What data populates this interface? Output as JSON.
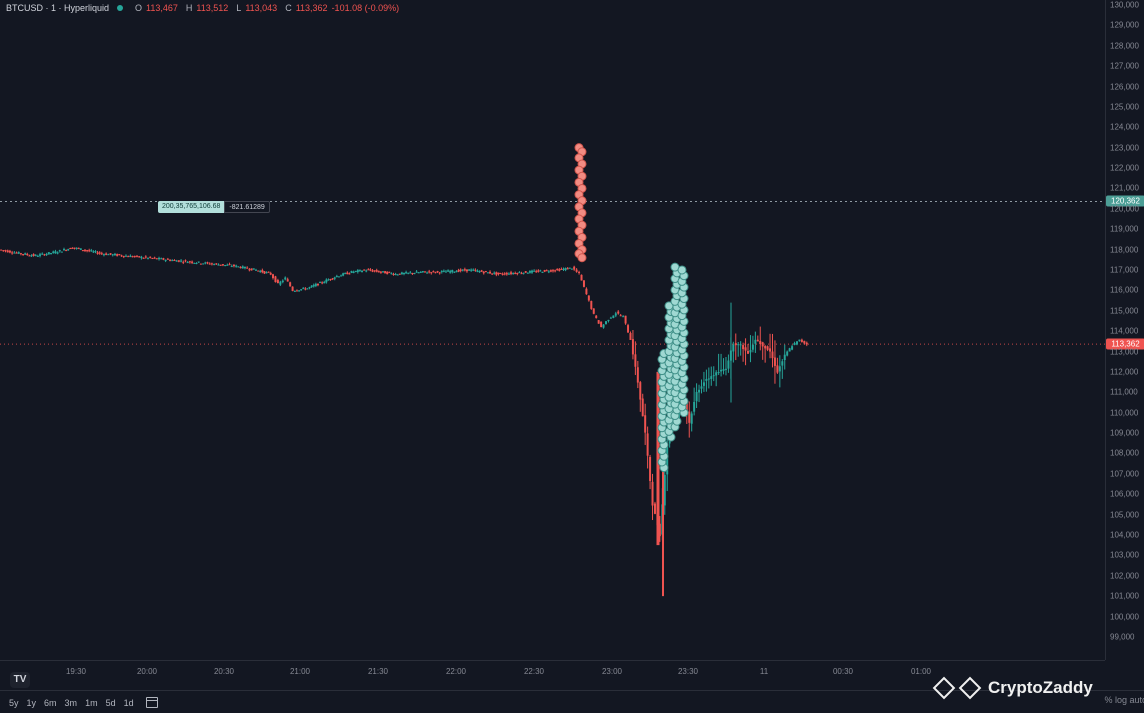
{
  "header": {
    "symbol": "BTCUSD · 1 · Hyperliquid",
    "o_key": "O",
    "o_val": "113,467",
    "h_key": "H",
    "h_val": "113,512",
    "l_key": "L",
    "l_val": "113,043",
    "c_key": "C",
    "c_val": "113,362",
    "change": "-101.08 (-0.09%)"
  },
  "colors": {
    "background": "#131722",
    "up": "#26a69a",
    "down": "#ef5350",
    "bubble_buy": "#9fd8d2",
    "bubble_sell": "#f28b82",
    "grid": "#1e222d"
  },
  "line_label": {
    "left_text": "200,35,765,106.68",
    "right_text": "-821.61289"
  },
  "price_badges": {
    "upper": "120,362",
    "current": "113,362"
  },
  "chart_data": {
    "type": "candlestick",
    "y_ticks": [
      "130,000",
      "129,000",
      "128,000",
      "127,000",
      "126,000",
      "125,000",
      "124,000",
      "123,000",
      "122,000",
      "121,000",
      "120,000",
      "119,000",
      "118,000",
      "117,000",
      "116,000",
      "115,000",
      "114,000",
      "113,000",
      "112,000",
      "111,000",
      "110,000",
      "109,000",
      "108,000",
      "107,000",
      "106,000",
      "105,000",
      "104,000",
      "103,000",
      "102,000",
      "101,000",
      "100,000",
      "99,000"
    ],
    "ylim": [
      98700,
      130000
    ],
    "x_ticks": [
      "19:30",
      "20:00",
      "20:30",
      "21:00",
      "21:30",
      "22:00",
      "22:30",
      "23:00",
      "23:30",
      "11",
      "00:30",
      "01:00"
    ],
    "price_path": [
      [
        0,
        118000
      ],
      [
        3,
        117800
      ],
      [
        5,
        117700
      ],
      [
        8,
        117900
      ],
      [
        10,
        118100
      ],
      [
        12,
        117950
      ],
      [
        14,
        117800
      ],
      [
        17,
        117700
      ],
      [
        20,
        117600
      ],
      [
        23,
        117500
      ],
      [
        26,
        117400
      ],
      [
        29,
        117300
      ],
      [
        32,
        117200
      ],
      [
        35,
        117000
      ],
      [
        37,
        116800
      ],
      [
        38,
        116300
      ],
      [
        39,
        116600
      ],
      [
        40,
        116000
      ],
      [
        42,
        116100
      ],
      [
        44,
        116400
      ],
      [
        46,
        116700
      ],
      [
        48,
        116900
      ],
      [
        50,
        117000
      ],
      [
        52,
        116900
      ],
      [
        54,
        116800
      ],
      [
        56,
        116850
      ],
      [
        58,
        116900
      ],
      [
        60,
        116900
      ],
      [
        62,
        116950
      ],
      [
        64,
        117000
      ],
      [
        66,
        116900
      ],
      [
        68,
        116800
      ],
      [
        70,
        116850
      ],
      [
        72,
        116900
      ],
      [
        74,
        116950
      ],
      [
        76,
        117000
      ],
      [
        78,
        117100
      ],
      [
        79,
        116800
      ],
      [
        80,
        115800
      ],
      [
        81,
        114800
      ],
      [
        82,
        114200
      ],
      [
        83,
        114600
      ],
      [
        84,
        114900
      ],
      [
        85,
        114700
      ],
      [
        86,
        113600
      ],
      [
        87,
        111500
      ],
      [
        88,
        109000
      ],
      [
        89,
        105500
      ],
      [
        90,
        104000
      ],
      [
        91,
        108500
      ],
      [
        92,
        110200
      ],
      [
        93,
        111200
      ],
      [
        94,
        109500
      ],
      [
        95,
        111000
      ],
      [
        96,
        111500
      ],
      [
        97,
        111800
      ],
      [
        98,
        112000
      ],
      [
        99,
        112200
      ],
      [
        100,
        113400
      ],
      [
        101,
        113300
      ],
      [
        102,
        112900
      ],
      [
        103,
        113600
      ],
      [
        104,
        113300
      ],
      [
        105,
        113000
      ],
      [
        106,
        112000
      ],
      [
        107,
        112800
      ],
      [
        108,
        113300
      ],
      [
        109,
        113550
      ],
      [
        110,
        113362
      ]
    ],
    "sell_bubbles": [
      123000,
      122800,
      122500,
      122200,
      121900,
      121600,
      121300,
      121000,
      120700,
      120400,
      120100,
      119800,
      119500,
      119200,
      118900,
      118600,
      118300,
      118000,
      117800,
      117600
    ],
    "buy_bubbles_range": [
      107300,
      117300
    ],
    "upper_line_value": 120362,
    "current_line_value": 113362
  },
  "bottom_bar": {
    "ranges": [
      "5y",
      "1y",
      "6m",
      "3m",
      "1m",
      "5d",
      "1d"
    ],
    "right_text": "% log auto"
  },
  "tv_logo": "TV",
  "watermark": "CryptoZaddy"
}
